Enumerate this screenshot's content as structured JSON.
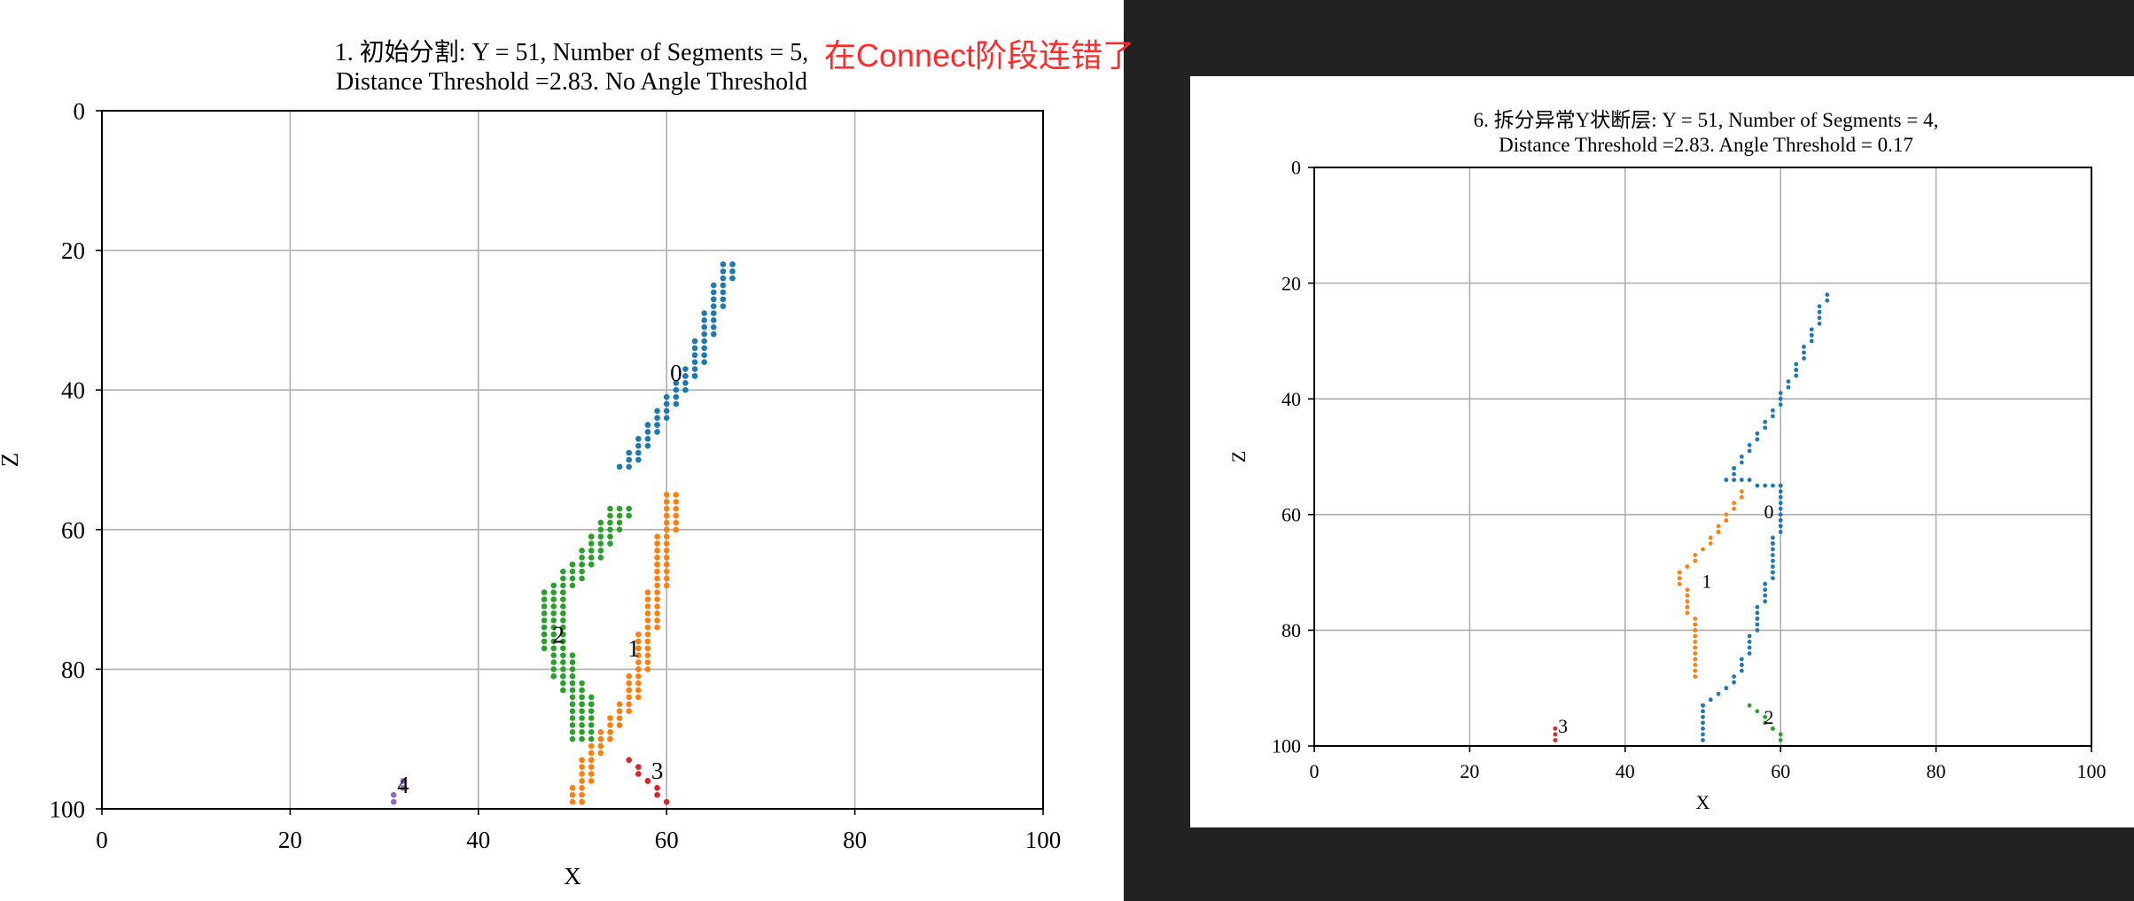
{
  "annotation": "在Connect阶段连错了",
  "colors": {
    "c0": "#1f77b4",
    "c1": "#ff7f0e",
    "c2": "#2ca02c",
    "c3": "#d62728",
    "c4": "#9467bd",
    "annotation": "#ff2a2a",
    "dark_panel": "#222222"
  },
  "chart_data": [
    {
      "type": "scatter",
      "title_line1": "1. 初始分割: Y = 51, Number of Segments = 5,",
      "title_line2": "Distance Threshold =2.83. No Angle Threshold",
      "xlabel": "X",
      "ylabel": "Z",
      "xlim": [
        0,
        100
      ],
      "ylim": [
        0,
        100
      ],
      "y_inverted": true,
      "grid": true,
      "xticks": [
        "0",
        "20",
        "40",
        "60",
        "80",
        "100"
      ],
      "yticks": [
        "0",
        "20",
        "40",
        "60",
        "80",
        "100"
      ],
      "labels": [
        {
          "text": "0",
          "x": 61,
          "y": 37.5,
          "color": "c0"
        },
        {
          "text": "1",
          "x": 56.5,
          "y": 77,
          "color": "c1"
        },
        {
          "text": "2",
          "x": 48.5,
          "y": 75,
          "color": "c2"
        },
        {
          "text": "3",
          "x": 59,
          "y": 94.5,
          "color": "c3"
        },
        {
          "text": "4",
          "x": 32,
          "y": 96.5,
          "color": "c4"
        }
      ],
      "series": [
        {
          "segment": "0",
          "color": "c0",
          "width": 2,
          "points": [
            [
              66,
              22
            ],
            [
              62,
              38
            ],
            [
              58,
              45
            ],
            [
              55,
              51
            ]
          ]
        },
        {
          "segment": "1",
          "color": "c1",
          "width": 2,
          "points": [
            [
              60,
              55
            ],
            [
              59,
              65
            ],
            [
              57,
              77
            ],
            [
              56,
              83
            ],
            [
              53,
              90
            ],
            [
              51,
              93
            ],
            [
              50,
              99
            ]
          ]
        },
        {
          "segment": "2",
          "color": "c2",
          "width": 3,
          "points": [
            [
              54,
              57
            ],
            [
              52,
              61
            ],
            [
              50,
              65
            ],
            [
              47,
              69
            ],
            [
              47,
              75
            ],
            [
              48,
              81
            ],
            [
              50,
              85
            ],
            [
              50,
              90
            ]
          ]
        },
        {
          "segment": "3",
          "color": "c3",
          "width": 1,
          "points": [
            [
              56,
              93
            ],
            [
              58,
              96
            ],
            [
              60,
              99
            ]
          ]
        },
        {
          "segment": "4",
          "color": "c4",
          "width": 1,
          "points": [
            [
              31,
              99
            ],
            [
              32,
              96
            ]
          ]
        }
      ]
    },
    {
      "type": "scatter",
      "title_line1": "6. 拆分异常Y状断层: Y = 51, Number of Segments = 4,",
      "title_line2": "Distance Threshold =2.83. Angle Threshold = 0.17",
      "xlabel": "X",
      "ylabel": "Z",
      "xlim": [
        0,
        100
      ],
      "ylim": [
        0,
        100
      ],
      "y_inverted": true,
      "grid": true,
      "xticks": [
        "0",
        "20",
        "40",
        "60",
        "80",
        "100"
      ],
      "yticks": [
        "0",
        "20",
        "40",
        "60",
        "80",
        "100"
      ],
      "labels": [
        {
          "text": "0",
          "x": 58.5,
          "y": 59.5,
          "color": "c0"
        },
        {
          "text": "1",
          "x": 50.5,
          "y": 71.5,
          "color": "c1"
        },
        {
          "text": "2",
          "x": 58.5,
          "y": 95,
          "color": "c2"
        },
        {
          "text": "3",
          "x": 32,
          "y": 96.5,
          "color": "c3"
        }
      ],
      "series": [
        {
          "segment": "0",
          "color": "c0",
          "width": 1,
          "points": [
            [
              66,
              22
            ],
            [
              64,
              29
            ],
            [
              62,
              35
            ],
            [
              60,
              40
            ],
            [
              57,
              47
            ],
            [
              54,
              52
            ],
            [
              53,
              54
            ],
            [
              60,
              55
            ],
            [
              60,
              62
            ],
            [
              59,
              65
            ],
            [
              59,
              70
            ],
            [
              58,
              72
            ],
            [
              57,
              78
            ],
            [
              55,
              86
            ],
            [
              53,
              90
            ],
            [
              50,
              93
            ],
            [
              50,
              99
            ]
          ]
        },
        {
          "segment": "1",
          "color": "c1",
          "width": 1,
          "points": [
            [
              55,
              56
            ],
            [
              52,
              63
            ],
            [
              48,
              69
            ],
            [
              47,
              70
            ],
            [
              48,
              76
            ],
            [
              49,
              80
            ],
            [
              49,
              88
            ]
          ]
        },
        {
          "segment": "2",
          "color": "c2",
          "width": 1,
          "points": [
            [
              56,
              93
            ],
            [
              59,
              97
            ],
            [
              60,
              99
            ]
          ]
        },
        {
          "segment": "3",
          "color": "c3",
          "width": 1,
          "points": [
            [
              31,
              99
            ],
            [
              31,
              97
            ]
          ]
        }
      ]
    }
  ]
}
